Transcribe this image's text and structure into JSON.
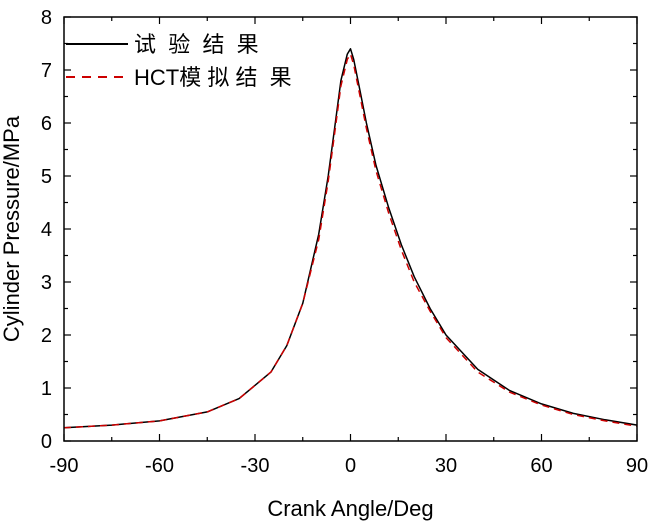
{
  "chart_data": {
    "type": "line",
    "title": "",
    "xlabel": "Crank Angle/Deg",
    "ylabel": "Cylinder Pressure/MPa",
    "xlim": [
      -90,
      90
    ],
    "ylim": [
      0,
      8
    ],
    "xticks": [
      -90,
      -60,
      -30,
      0,
      30,
      60,
      90
    ],
    "yticks": [
      0,
      1,
      2,
      3,
      4,
      5,
      6,
      7,
      8
    ],
    "grid": false,
    "legend_position": "top-left",
    "series": [
      {
        "name": "试  验  结  果",
        "color": "#000000",
        "dash": "solid",
        "x": [
          -90,
          -75,
          -60,
          -45,
          -35,
          -25,
          -20,
          -15,
          -10,
          -7,
          -5,
          -3,
          -1,
          0,
          1,
          3,
          5,
          8,
          12,
          16,
          20,
          25,
          30,
          40,
          50,
          60,
          70,
          80,
          90
        ],
        "y": [
          0.25,
          0.3,
          0.38,
          0.55,
          0.8,
          1.3,
          1.8,
          2.6,
          3.9,
          5.0,
          5.9,
          6.8,
          7.3,
          7.4,
          7.2,
          6.6,
          6.0,
          5.2,
          4.4,
          3.7,
          3.1,
          2.5,
          2.0,
          1.35,
          0.95,
          0.7,
          0.52,
          0.4,
          0.3
        ]
      },
      {
        "name": "HCT模 拟 结  果",
        "color": "#cc0000",
        "dash": "dashed",
        "x": [
          -90,
          -75,
          -60,
          -45,
          -35,
          -25,
          -20,
          -15,
          -10,
          -7,
          -5,
          -3,
          -1,
          0,
          1,
          3,
          5,
          8,
          12,
          16,
          20,
          25,
          30,
          40,
          50,
          60,
          70,
          80,
          90
        ],
        "y": [
          0.25,
          0.3,
          0.38,
          0.55,
          0.8,
          1.3,
          1.8,
          2.6,
          3.8,
          4.9,
          5.8,
          6.7,
          7.2,
          7.3,
          7.1,
          6.5,
          5.9,
          5.1,
          4.3,
          3.6,
          3.0,
          2.45,
          1.95,
          1.3,
          0.92,
          0.68,
          0.5,
          0.38,
          0.28
        ]
      }
    ]
  }
}
